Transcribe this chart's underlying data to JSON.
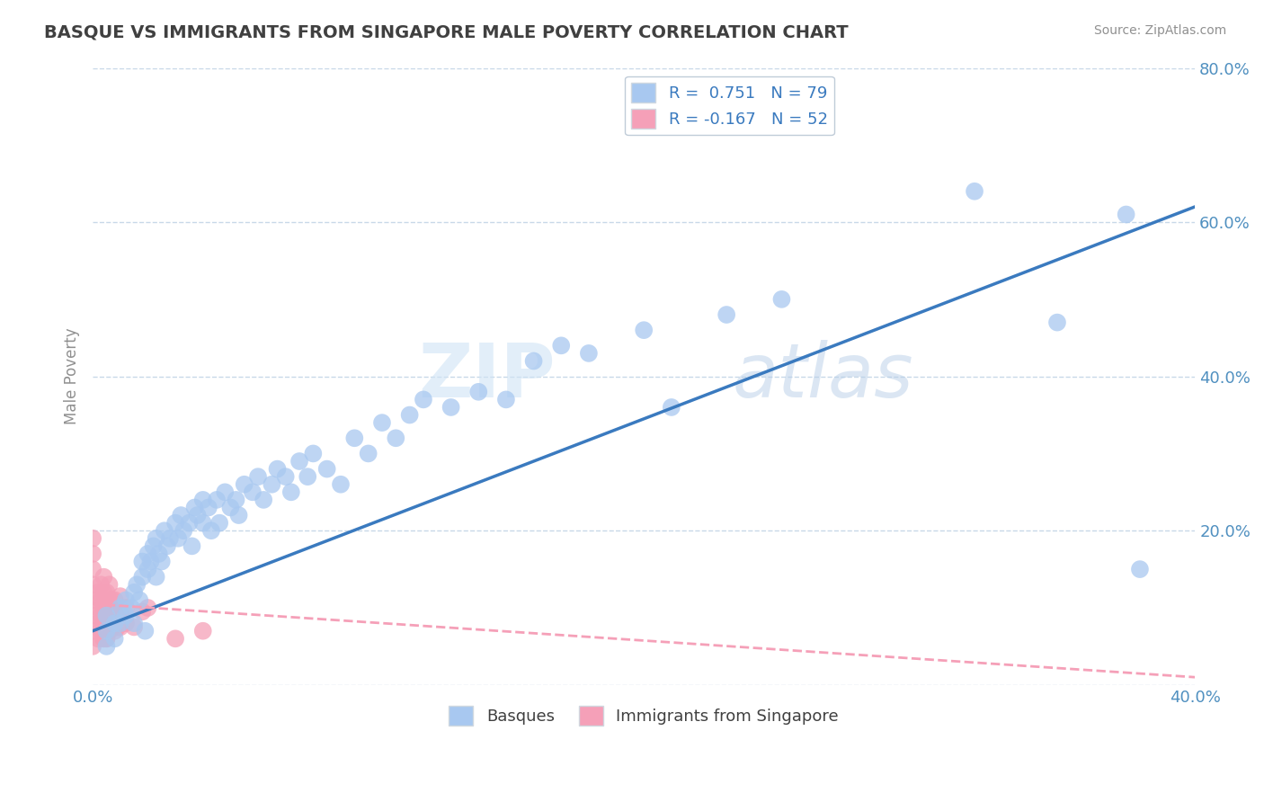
{
  "title": "BASQUE VS IMMIGRANTS FROM SINGAPORE MALE POVERTY CORRELATION CHART",
  "source": "Source: ZipAtlas.com",
  "ylabel": "Male Poverty",
  "xmin": 0.0,
  "xmax": 0.4,
  "ymin": 0.0,
  "ymax": 0.8,
  "yticks": [
    0.0,
    0.2,
    0.4,
    0.6,
    0.8
  ],
  "ytick_labels": [
    "",
    "20.0%",
    "40.0%",
    "60.0%",
    "80.0%"
  ],
  "xticks": [
    0.0,
    0.1,
    0.2,
    0.3,
    0.4
  ],
  "xtick_labels": [
    "0.0%",
    "",
    "",
    "",
    "40.0%"
  ],
  "legend_r1": "R =  0.751   N = 79",
  "legend_r2": "R = -0.167   N = 52",
  "series1_color": "#a8c8f0",
  "series2_color": "#f5a0b8",
  "trendline1_color": "#3a7abf",
  "trendline2_color": "#f5a0b8",
  "watermark_zip": "ZIP",
  "watermark_atlas": "atlas",
  "background_color": "#ffffff",
  "grid_color": "#c8d8e8",
  "title_color": "#404040",
  "axis_label_color": "#5090c0",
  "basques_x": [
    0.005,
    0.005,
    0.005,
    0.008,
    0.008,
    0.01,
    0.01,
    0.012,
    0.012,
    0.014,
    0.015,
    0.015,
    0.016,
    0.017,
    0.018,
    0.018,
    0.019,
    0.02,
    0.02,
    0.021,
    0.022,
    0.023,
    0.023,
    0.024,
    0.025,
    0.026,
    0.027,
    0.028,
    0.03,
    0.031,
    0.032,
    0.033,
    0.035,
    0.036,
    0.037,
    0.038,
    0.04,
    0.04,
    0.042,
    0.043,
    0.045,
    0.046,
    0.048,
    0.05,
    0.052,
    0.053,
    0.055,
    0.058,
    0.06,
    0.062,
    0.065,
    0.067,
    0.07,
    0.072,
    0.075,
    0.078,
    0.08,
    0.085,
    0.09,
    0.095,
    0.1,
    0.105,
    0.11,
    0.115,
    0.12,
    0.13,
    0.14,
    0.15,
    0.16,
    0.17,
    0.18,
    0.2,
    0.21,
    0.23,
    0.25,
    0.32,
    0.35,
    0.375,
    0.38
  ],
  "basques_y": [
    0.05,
    0.07,
    0.09,
    0.06,
    0.08,
    0.08,
    0.1,
    0.09,
    0.11,
    0.1,
    0.08,
    0.12,
    0.13,
    0.11,
    0.14,
    0.16,
    0.07,
    0.15,
    0.17,
    0.16,
    0.18,
    0.14,
    0.19,
    0.17,
    0.16,
    0.2,
    0.18,
    0.19,
    0.21,
    0.19,
    0.22,
    0.2,
    0.21,
    0.18,
    0.23,
    0.22,
    0.21,
    0.24,
    0.23,
    0.2,
    0.24,
    0.21,
    0.25,
    0.23,
    0.24,
    0.22,
    0.26,
    0.25,
    0.27,
    0.24,
    0.26,
    0.28,
    0.27,
    0.25,
    0.29,
    0.27,
    0.3,
    0.28,
    0.26,
    0.32,
    0.3,
    0.34,
    0.32,
    0.35,
    0.37,
    0.36,
    0.38,
    0.37,
    0.42,
    0.44,
    0.43,
    0.46,
    0.36,
    0.48,
    0.5,
    0.64,
    0.47,
    0.61,
    0.15
  ],
  "singapore_x": [
    0.0,
    0.0,
    0.0,
    0.0,
    0.0,
    0.0,
    0.0,
    0.0,
    0.002,
    0.002,
    0.002,
    0.002,
    0.003,
    0.003,
    0.003,
    0.003,
    0.004,
    0.004,
    0.004,
    0.004,
    0.004,
    0.004,
    0.004,
    0.004,
    0.005,
    0.005,
    0.005,
    0.005,
    0.005,
    0.005,
    0.006,
    0.006,
    0.006,
    0.006,
    0.007,
    0.007,
    0.007,
    0.008,
    0.008,
    0.008,
    0.009,
    0.009,
    0.01,
    0.01,
    0.01,
    0.012,
    0.012,
    0.015,
    0.018,
    0.02,
    0.03,
    0.04
  ],
  "singapore_y": [
    0.05,
    0.07,
    0.09,
    0.11,
    0.13,
    0.15,
    0.17,
    0.19,
    0.06,
    0.08,
    0.1,
    0.12,
    0.07,
    0.09,
    0.11,
    0.13,
    0.06,
    0.08,
    0.1,
    0.12,
    0.14,
    0.06,
    0.08,
    0.1,
    0.06,
    0.075,
    0.09,
    0.105,
    0.12,
    0.06,
    0.07,
    0.09,
    0.11,
    0.13,
    0.075,
    0.09,
    0.11,
    0.07,
    0.09,
    0.11,
    0.075,
    0.095,
    0.075,
    0.095,
    0.115,
    0.08,
    0.1,
    0.075,
    0.095,
    0.1,
    0.06,
    0.07
  ],
  "trendline1_x": [
    0.0,
    0.4
  ],
  "trendline1_y": [
    0.07,
    0.62
  ],
  "trendline2_x": [
    0.0,
    0.4
  ],
  "trendline2_y": [
    0.105,
    0.01
  ]
}
